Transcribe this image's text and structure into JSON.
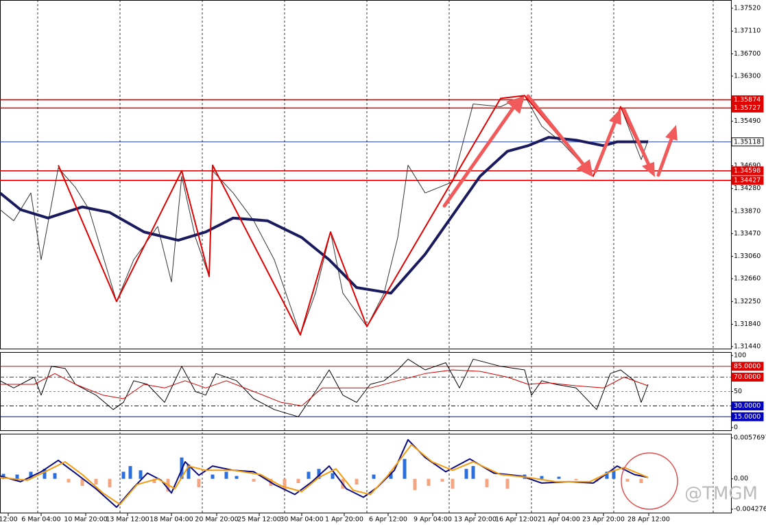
{
  "chart_data": [
    {
      "type": "line",
      "xlim": [
        0,
        1066
      ],
      "xticks": [
        {
          "value": 12,
          "label": "12:00"
        },
        {
          "value": 60,
          "label": "6 Mar 04:00"
        },
        {
          "value": 125,
          "label": "10 Mar 20:00"
        },
        {
          "value": 186,
          "label": "13 Mar 12:00"
        },
        {
          "value": 250,
          "label": "18 Mar 04:00"
        },
        {
          "value": 316,
          "label": "20 Mar 20:00"
        },
        {
          "value": 378,
          "label": "25 Mar 12:00"
        },
        {
          "value": 440,
          "label": "30 Mar 04:00"
        },
        {
          "value": 502,
          "label": "1 Apr 20:00"
        },
        {
          "value": 566,
          "label": "6 Apr 12:00"
        },
        {
          "value": 631,
          "label": "9 Apr 04:00"
        },
        {
          "value": 693,
          "label": "13 Apr 20:00"
        },
        {
          "value": 753,
          "label": "16 Apr 12:00"
        },
        {
          "value": 815,
          "label": "21 Apr 04:00"
        },
        {
          "value": 880,
          "label": "23 Apr 20:00"
        },
        {
          "value": 946,
          "label": "28 Apr 12:00"
        }
      ],
      "xgrid": [
        55,
        175,
        295,
        415,
        535,
        655,
        775,
        895,
        1040
      ],
      "ylim": [
        1.3144,
        1.3752
      ],
      "yticks": [
        {
          "value": 1.3752,
          "label": "1.37520"
        },
        {
          "value": 1.3711,
          "label": "1.37110"
        },
        {
          "value": 1.367,
          "label": "1.36700"
        },
        {
          "value": 1.363,
          "label": "1.36300"
        },
        {
          "value": 1.3549,
          "label": "1.35490"
        },
        {
          "value": 1.3469,
          "label": "1.34690"
        },
        {
          "value": 1.3428,
          "label": "1.34280"
        },
        {
          "value": 1.3387,
          "label": "1.33870"
        },
        {
          "value": 1.3347,
          "label": "1.33470"
        },
        {
          "value": 1.3306,
          "label": "1.33060"
        },
        {
          "value": 1.3266,
          "label": "1.32660"
        },
        {
          "value": 1.3225,
          "label": "1.32250"
        },
        {
          "value": 1.3184,
          "label": "1.31840"
        },
        {
          "value": 1.3144,
          "label": "1.31440"
        }
      ],
      "levels": [
        {
          "value": 1.35874,
          "color": "#e00000"
        },
        {
          "value": 1.35727,
          "color": "#e00000"
        },
        {
          "value": 1.35118,
          "color": "#2040c0"
        },
        {
          "value": 1.34598,
          "color": "#e00000"
        },
        {
          "value": 1.34427,
          "color": "#e00000"
        }
      ],
      "series": [
        {
          "color": "#333333",
          "width": 1,
          "x": [
            0,
            20,
            45,
            60,
            85,
            110,
            130,
            170,
            195,
            230,
            250,
            265,
            285,
            305,
            310,
            340,
            370,
            400,
            438,
            460,
            482,
            500,
            535,
            560,
            580,
            595,
            620,
            660,
            690,
            730,
            765,
            790,
            820,
            865,
            905,
            935,
            945
          ],
          "values": [
            1.339,
            1.337,
            1.342,
            1.33,
            1.3465,
            1.343,
            1.339,
            1.3225,
            1.33,
            1.336,
            1.326,
            1.345,
            1.334,
            1.327,
            1.346,
            1.342,
            1.337,
            1.33,
            1.3165,
            1.324,
            1.335,
            1.324,
            1.318,
            1.324,
            1.334,
            1.347,
            1.342,
            1.344,
            1.358,
            1.3575,
            1.3595,
            1.354,
            1.351,
            1.345,
            1.3575,
            1.348,
            1.3515
          ]
        },
        {
          "color": "#1a1a5e",
          "width": 4,
          "x": [
            0,
            30,
            70,
            120,
            160,
            210,
            260,
            300,
            340,
            390,
            440,
            480,
            520,
            570,
            620,
            660,
            700,
            740,
            770,
            800,
            840,
            880,
            900,
            945
          ],
          "values": [
            1.342,
            1.339,
            1.3375,
            1.3395,
            1.3385,
            1.335,
            1.3335,
            1.335,
            1.3375,
            1.337,
            1.334,
            1.33,
            1.325,
            1.324,
            1.331,
            1.338,
            1.345,
            1.3495,
            1.3505,
            1.352,
            1.3515,
            1.3505,
            1.3512,
            1.3512
          ]
        },
        {
          "color": "#e00000",
          "width": 2,
          "x": [
            85,
            170,
            265,
            305,
            310,
            438,
            482,
            535,
            730,
            765,
            865,
            905,
            945
          ],
          "values": [
            1.347,
            1.3225,
            1.346,
            1.327,
            1.347,
            1.3165,
            1.335,
            1.318,
            1.359,
            1.3595,
            1.345,
            1.3575,
            1.347
          ]
        }
      ]
    },
    {
      "type": "line",
      "xlim": [
        0,
        1066
      ],
      "ylim": [
        0,
        100
      ],
      "yticks": [
        100,
        50,
        0
      ],
      "levels": [
        {
          "value": 85,
          "label": "85.0000",
          "color": "#e00000"
        },
        {
          "value": 70,
          "label": "70.0000",
          "color": "#e00000"
        },
        {
          "value": 30,
          "label": "30.0000",
          "color": "#0000c0"
        },
        {
          "value": 15,
          "label": "15.0000",
          "color": "#0000c0"
        }
      ],
      "series": [
        {
          "color": "#000000",
          "width": 1,
          "x": [
            0,
            20,
            50,
            60,
            75,
            95,
            110,
            140,
            165,
            180,
            195,
            215,
            240,
            265,
            285,
            300,
            315,
            345,
            370,
            400,
            435,
            460,
            480,
            500,
            520,
            540,
            560,
            580,
            595,
            620,
            650,
            670,
            690,
            730,
            765,
            775,
            790,
            810,
            840,
            870,
            890,
            905,
            925,
            935,
            945
          ],
          "values": [
            65,
            55,
            70,
            45,
            85,
            82,
            60,
            45,
            25,
            35,
            65,
            60,
            35,
            85,
            50,
            45,
            75,
            65,
            40,
            25,
            15,
            50,
            80,
            45,
            35,
            60,
            65,
            80,
            95,
            80,
            90,
            55,
            95,
            85,
            80,
            45,
            65,
            60,
            55,
            25,
            75,
            80,
            65,
            35,
            60
          ]
        },
        {
          "color": "#cc0000",
          "width": 1,
          "x": [
            0,
            50,
            80,
            110,
            150,
            180,
            210,
            240,
            270,
            300,
            330,
            370,
            410,
            440,
            470,
            500,
            540,
            580,
            620,
            660,
            700,
            740,
            770,
            800,
            840,
            880,
            910,
            945
          ],
          "values": [
            60,
            60,
            75,
            60,
            45,
            40,
            60,
            55,
            65,
            55,
            65,
            50,
            35,
            30,
            55,
            55,
            55,
            65,
            75,
            80,
            78,
            70,
            60,
            62,
            58,
            55,
            70,
            58
          ]
        }
      ]
    },
    {
      "type": "line",
      "xlim": [
        0,
        1066
      ],
      "ylim": [
        -0.004276,
        0.0057697
      ],
      "yticks": [
        0.0057697,
        {
          "value": 0,
          "label": "0.00"
        },
        -0.004276
      ],
      "series": [
        {
          "kind": "histogram",
          "pos_color": "#2a6fdb",
          "neg_color": "#f4a582",
          "x": [
            5,
            25,
            45,
            65,
            80,
            100,
            120,
            140,
            160,
            180,
            190,
            205,
            225,
            245,
            265,
            275,
            290,
            310,
            330,
            345,
            370,
            395,
            415,
            435,
            450,
            465,
            485,
            500,
            520,
            545,
            570,
            590,
            605,
            625,
            645,
            660,
            680,
            690,
            710,
            740,
            765,
            790,
            815,
            840,
            870,
            885,
            895,
            915,
            935
          ],
          "values": [
            0.0007,
            0.0006,
            0.001,
            0.0014,
            0.0008,
            -0.0005,
            -0.001,
            -0.0008,
            -0.0012,
            0.001,
            0.0018,
            0.0012,
            -0.0006,
            -0.0018,
            0.003,
            0.002,
            -0.0012,
            0.0006,
            0.001,
            0.0004,
            -0.0004,
            -0.001,
            -0.0016,
            -0.0006,
            0.001,
            0.0014,
            0.0008,
            -0.0014,
            -0.0008,
            0.0006,
            0.001,
            0.0028,
            -0.0016,
            -0.001,
            -0.0004,
            -0.0014,
            0.0014,
            0.0018,
            -0.0012,
            -0.0014,
            0.0006,
            0.0004,
            0.0003,
            -0.0002,
            -0.0004,
            0.001,
            0.0012,
            -0.0004,
            -0.0006
          ]
        },
        {
          "color": "#0a0a80",
          "width": 2,
          "x": [
            0,
            30,
            60,
            85,
            110,
            140,
            170,
            195,
            215,
            235,
            250,
            270,
            290,
            310,
            340,
            370,
            400,
            430,
            455,
            480,
            505,
            530,
            550,
            575,
            595,
            620,
            650,
            685,
            720,
            760,
            790,
            830,
            865,
            880,
            900,
            925,
            945
          ],
          "values": [
            0.0004,
            -0.0004,
            0.001,
            0.0026,
            0.0008,
            -0.0014,
            -0.004,
            -0.0012,
            0.0008,
            -0.0002,
            -0.002,
            0.0024,
            0.0005,
            0.0018,
            0.0012,
            0.001,
            -0.0008,
            -0.0022,
            -0.0004,
            0.0018,
            -0.0014,
            -0.0026,
            -0.0012,
            0.0012,
            0.0055,
            0.003,
            0.001,
            0.0028,
            0.0008,
            0.0004,
            -0.0006,
            -0.0004,
            -0.0006,
            0.0004,
            0.0018,
            0.0006,
            0.0002
          ]
        },
        {
          "color": "#f39c12",
          "width": 2,
          "x": [
            0,
            40,
            70,
            95,
            120,
            150,
            175,
            200,
            230,
            255,
            275,
            300,
            340,
            380,
            410,
            440,
            465,
            490,
            515,
            540,
            565,
            600,
            630,
            660,
            690,
            730,
            770,
            810,
            860,
            890,
            910,
            945
          ],
          "values": [
            0.0002,
            -0.0002,
            0.0012,
            0.0024,
            0.0006,
            -0.002,
            -0.0036,
            -0.0008,
            0,
            -0.0014,
            0.0018,
            0.0012,
            0.0012,
            0.0006,
            -0.001,
            -0.0018,
            0.0002,
            0.0014,
            -0.0016,
            -0.0022,
            0.0004,
            0.0048,
            0.0024,
            0.0012,
            0.0024,
            0.0006,
            0.0002,
            -0.0004,
            -0.0004,
            0.001,
            0.0016,
            0.0002
          ]
        }
      ]
    }
  ],
  "watermark": "@TMGM"
}
